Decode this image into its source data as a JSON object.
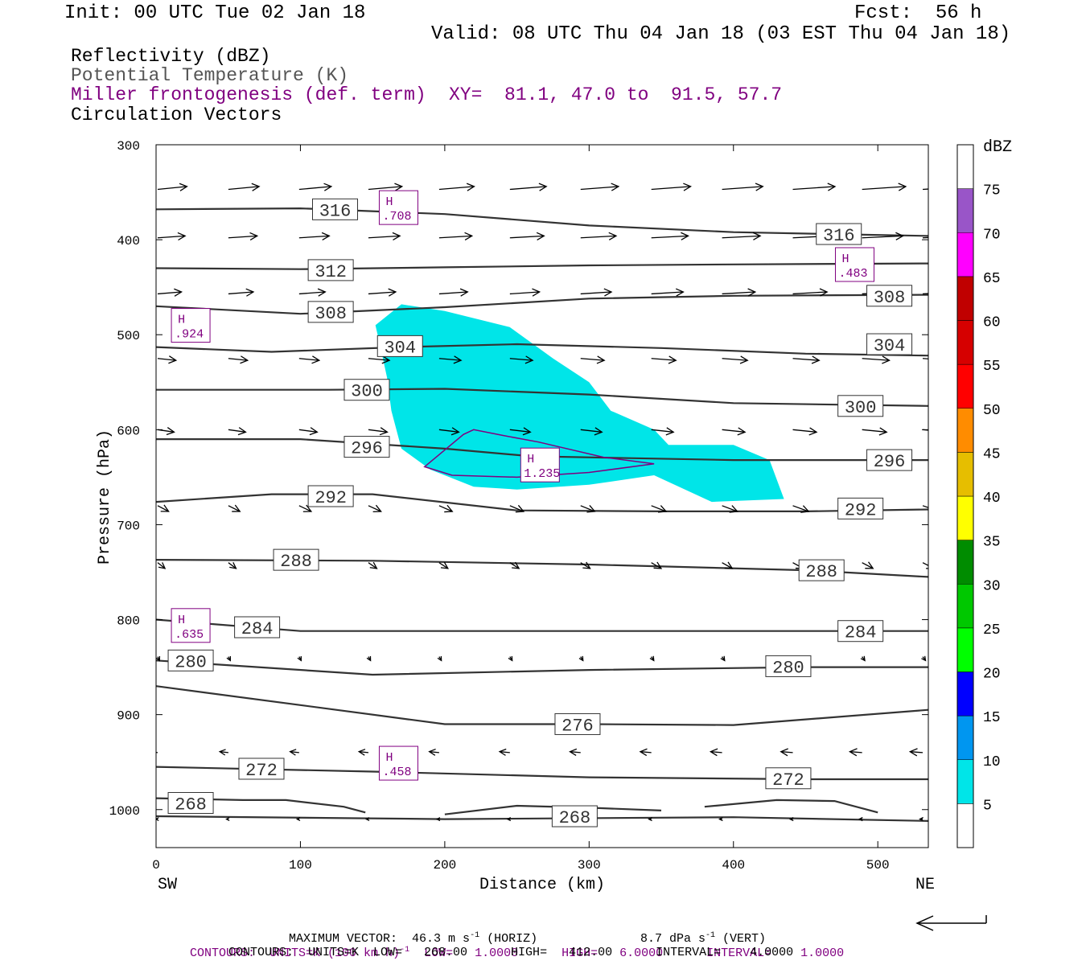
{
  "header": {
    "init": "Init: 00 UTC Tue 02 Jan 18",
    "fcst": "Fcst:  56 h",
    "valid": "Valid: 08 UTC Thu 04 Jan 18 (03 EST Thu 04 Jan 18)"
  },
  "legend": {
    "line1": "Reflectivity (dBZ)",
    "line2": "Potential Temperature (K)",
    "line3": "Miller frontogenesis (def. term)",
    "line4": "Circulation Vectors",
    "xy": "XY=  81.1, 47.0 to  91.5, 57.7"
  },
  "colors": {
    "black_contour": "#333333",
    "purple": "#800080",
    "grey_text": "#555555",
    "cyan": "#00E5E8"
  },
  "chart_data": {
    "type": "cross-section",
    "xlabel": "Distance (km)",
    "ylabel": "Pressure (hPa)",
    "x_ticks": [
      0,
      100,
      200,
      300,
      400,
      500
    ],
    "y_ticks": [
      300,
      400,
      500,
      600,
      700,
      800,
      900,
      1000
    ],
    "xlim": [
      0,
      535
    ],
    "ylim": [
      1040,
      300
    ],
    "left_end_label": "SW",
    "right_end_label": "NE",
    "theta_contours": [
      {
        "level": 316,
        "points": [
          [
            0,
            368
          ],
          [
            100,
            367
          ],
          [
            200,
            373
          ],
          [
            300,
            385
          ],
          [
            400,
            392
          ],
          [
            535,
            396
          ]
        ],
        "labels": [
          [
            124,
            368
          ],
          [
            473,
            394
          ]
        ]
      },
      {
        "level": 312,
        "points": [
          [
            0,
            430
          ],
          [
            100,
            431
          ],
          [
            200,
            429
          ],
          [
            300,
            427
          ],
          [
            400,
            426
          ],
          [
            535,
            425
          ]
        ],
        "labels": [
          [
            121,
            432
          ]
        ]
      },
      {
        "level": 308,
        "points": [
          [
            0,
            470
          ],
          [
            100,
            478
          ],
          [
            200,
            471
          ],
          [
            300,
            462
          ],
          [
            400,
            459
          ],
          [
            535,
            458
          ]
        ],
        "labels": [
          [
            121,
            476
          ],
          [
            508,
            459
          ]
        ]
      },
      {
        "level": 304,
        "points": [
          [
            0,
            513
          ],
          [
            80,
            518
          ],
          [
            170,
            513
          ],
          [
            250,
            510
          ],
          [
            350,
            514
          ],
          [
            450,
            520
          ],
          [
            535,
            522
          ]
        ],
        "labels": [
          [
            169,
            512
          ],
          [
            508,
            510
          ]
        ]
      },
      {
        "level": 300,
        "points": [
          [
            0,
            558
          ],
          [
            120,
            558
          ],
          [
            200,
            557
          ],
          [
            300,
            563
          ],
          [
            400,
            572
          ],
          [
            535,
            575
          ]
        ],
        "labels": [
          [
            146,
            558
          ],
          [
            488,
            575
          ]
        ]
      },
      {
        "level": 296,
        "points": [
          [
            0,
            610
          ],
          [
            100,
            610
          ],
          [
            200,
            620
          ],
          [
            260,
            628
          ],
          [
            400,
            632
          ],
          [
            535,
            632
          ]
        ],
        "labels": [
          [
            146,
            618
          ],
          [
            508,
            632
          ]
        ]
      },
      {
        "level": 292,
        "points": [
          [
            0,
            676
          ],
          [
            80,
            668
          ],
          [
            150,
            668
          ],
          [
            250,
            685
          ],
          [
            350,
            686
          ],
          [
            450,
            686
          ],
          [
            535,
            684
          ]
        ],
        "labels": [
          [
            121,
            670
          ],
          [
            488,
            683
          ]
        ]
      },
      {
        "level": 288,
        "points": [
          [
            0,
            737
          ],
          [
            150,
            738
          ],
          [
            300,
            742
          ],
          [
            450,
            748
          ],
          [
            535,
            755
          ]
        ],
        "labels": [
          [
            97,
            737
          ],
          [
            461,
            748
          ]
        ]
      },
      {
        "level": 284,
        "points": [
          [
            0,
            800
          ],
          [
            100,
            812
          ],
          [
            200,
            812
          ],
          [
            350,
            812
          ],
          [
            535,
            812
          ]
        ],
        "labels": [
          [
            70,
            808
          ],
          [
            488,
            812
          ]
        ]
      },
      {
        "level": 280,
        "points": [
          [
            0,
            843
          ],
          [
            150,
            858
          ],
          [
            300,
            853
          ],
          [
            450,
            850
          ],
          [
            535,
            850
          ]
        ],
        "labels": [
          [
            24,
            843
          ],
          [
            438,
            849
          ]
        ]
      },
      {
        "level": 276,
        "points": [
          [
            0,
            870
          ],
          [
            100,
            890
          ],
          [
            200,
            910
          ],
          [
            300,
            910
          ],
          [
            400,
            911
          ],
          [
            535,
            895
          ]
        ],
        "labels": [
          [
            292,
            910
          ]
        ]
      },
      {
        "level": 272,
        "points": [
          [
            0,
            955
          ],
          [
            150,
            960
          ],
          [
            300,
            966
          ],
          [
            450,
            968
          ],
          [
            535,
            968
          ]
        ],
        "labels": [
          [
            73,
            957
          ],
          [
            438,
            967
          ]
        ]
      },
      {
        "level": 268,
        "points": [
          [
            0,
            988
          ],
          [
            60,
            990
          ],
          [
            90,
            990
          ],
          [
            130,
            997
          ],
          [
            145,
            1003
          ]
        ],
        "labels": [
          [
            24,
            993
          ],
          [
            290,
            1007
          ]
        ]
      },
      {
        "level": 268,
        "points": [
          [
            200,
            1005
          ],
          [
            250,
            996
          ],
          [
            300,
            998
          ],
          [
            350,
            1001
          ]
        ],
        "labels": []
      },
      {
        "level": 268,
        "points": [
          [
            380,
            997
          ],
          [
            430,
            990
          ],
          [
            470,
            991
          ],
          [
            500,
            1003
          ]
        ],
        "labels": []
      },
      {
        "level": 268,
        "points": [
          [
            0,
            1007
          ],
          [
            200,
            1010
          ],
          [
            400,
            1008
          ],
          [
            535,
            1012
          ]
        ],
        "labels": []
      }
    ],
    "reflectivity_5dbz_outline": [
      [
        152,
        490
      ],
      [
        170,
        468
      ],
      [
        200,
        475
      ],
      [
        245,
        492
      ],
      [
        275,
        525
      ],
      [
        300,
        550
      ],
      [
        315,
        580
      ],
      [
        345,
        600
      ],
      [
        355,
        616
      ],
      [
        400,
        616
      ],
      [
        425,
        632
      ],
      [
        435,
        673
      ],
      [
        385,
        676
      ],
      [
        345,
        648
      ],
      [
        300,
        658
      ],
      [
        250,
        663
      ],
      [
        220,
        660
      ],
      [
        190,
        642
      ],
      [
        170,
        620
      ],
      [
        163,
        580
      ],
      [
        160,
        545
      ],
      [
        155,
        510
      ]
    ],
    "frontogenesis_contour": [
      [
        186,
        639
      ],
      [
        213,
        605
      ],
      [
        220,
        600
      ],
      [
        240,
        606
      ],
      [
        265,
        613
      ],
      [
        310,
        629
      ],
      [
        345,
        636
      ],
      [
        300,
        645
      ],
      [
        250,
        650
      ],
      [
        205,
        648
      ]
    ],
    "highs": [
      {
        "label": "H",
        "value": ".708",
        "x": 168,
        "y": 367
      },
      {
        "label": "H",
        "value": ".483",
        "x": 484,
        "y": 427
      },
      {
        "label": "H",
        "value": ".924",
        "x": 24,
        "y": 491
      },
      {
        "label": "H",
        "value": "1.235",
        "x": 266,
        "y": 638
      },
      {
        "label": "H",
        "value": ".635",
        "x": 24,
        "y": 807
      },
      {
        "label": "H",
        "value": ".458",
        "x": 168,
        "y": 952
      }
    ],
    "vector_rows": [
      {
        "p": 347,
        "u": 1.6,
        "v": 0.06
      },
      {
        "p": 398,
        "u": 1.5,
        "v": 0.04
      },
      {
        "p": 457,
        "u": 1.3,
        "v": 0.04
      },
      {
        "p": 525,
        "u": 1.0,
        "v": -0.04
      },
      {
        "p": 600,
        "u": 0.9,
        "v": -0.05
      },
      {
        "p": 680,
        "u": 0.6,
        "v": -0.12
      },
      {
        "p": 740,
        "u": 0.4,
        "v": -0.12
      },
      {
        "p": 839,
        "u": 0.1,
        "v": -0.08
      },
      {
        "p": 940,
        "u": -0.45,
        "v": 0.02
      },
      {
        "p": 1010,
        "u": -0.1,
        "v": 0.0
      }
    ],
    "colorbar": {
      "title": "dBZ",
      "levels": [
        5,
        10,
        15,
        20,
        25,
        30,
        35,
        40,
        45,
        50,
        55,
        60,
        65,
        70,
        75
      ],
      "colors": [
        "#00E5E8",
        "#0096F0",
        "#0000FF",
        "#00FF00",
        "#00C800",
        "#008C00",
        "#FFFF00",
        "#E6BE00",
        "#FF8C00",
        "#FF0000",
        "#D60000",
        "#C00000",
        "#FF00FF",
        "#9955C8",
        "#FFFFFF"
      ]
    }
  },
  "footer": {
    "max_vector": "MAXIMUM VECTOR:  46.3 m s",
    "max_vector_exp": "-1",
    "max_vector_horiz": " (HORIZ)",
    "vert": "8.7 dPa s",
    "vert_exp": "-1",
    "vert_tail": " (VERT)",
    "purple_a": "CONTOURS:  UNITS=K (100 km h)",
    "purple_exp": "-1",
    "purple_b": "  LOW=   1.0000      HIGH=   6.0000      INTERVAL=    1.0000",
    "black": "CONTOURS:  UNITS=K  LOW=   268.00      HIGH=   412.00      INTERVAL=    4.0000"
  }
}
